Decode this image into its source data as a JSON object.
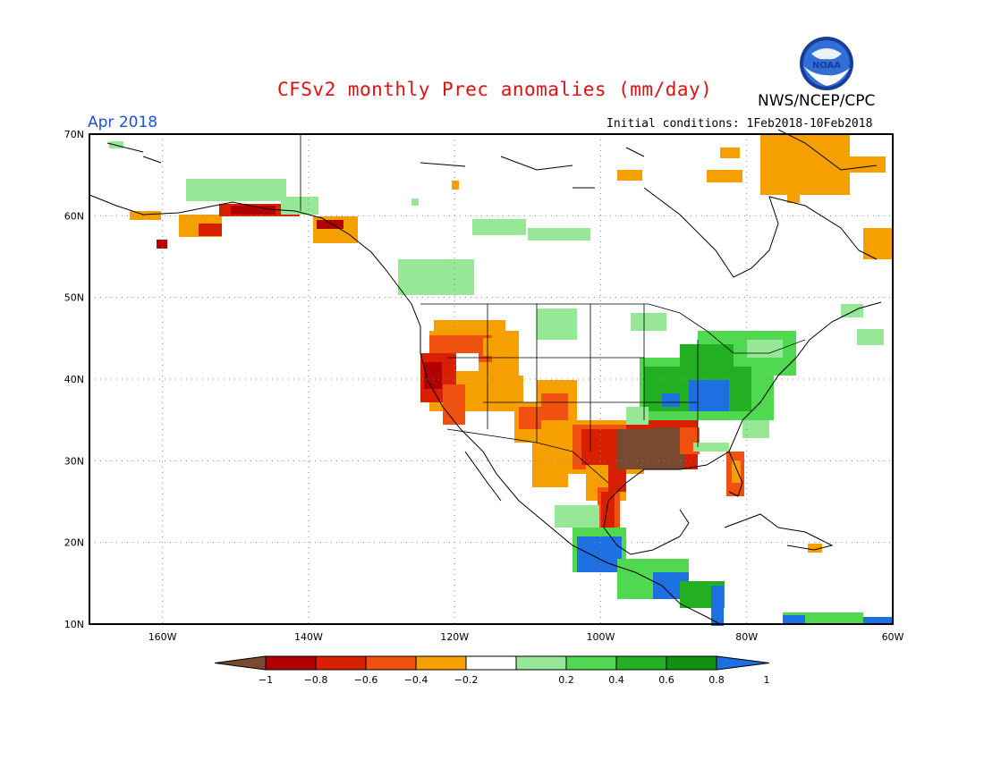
{
  "title": "CFSv2 monthly Prec anomalies (mm/day)",
  "valid_month": "Apr 2018",
  "agency": "NWS/NCEP/CPC",
  "initial_conditions": "Initial conditions: 1Feb2018-10Feb2018",
  "logo": {
    "icon": "noaa-logo-icon",
    "text": "NOAA"
  },
  "map": {
    "lon_range": [
      -170,
      -60
    ],
    "lat_range": [
      10,
      70
    ],
    "lat_labels": [
      "70N",
      "60N",
      "50N",
      "40N",
      "30N",
      "20N",
      "10N"
    ],
    "lon_labels": [
      "160W",
      "140W",
      "120W",
      "100W",
      "80W",
      "60W"
    ],
    "grid_style": "dotted"
  },
  "colorbar": {
    "ticks": [
      "−1",
      "−0.8",
      "−0.6",
      "−0.4",
      "−0.2",
      "0.2",
      "0.4",
      "0.6",
      "0.8",
      "1"
    ],
    "colors": {
      "below_min": "#7a4a30",
      "lt_-0.8": "#b00000",
      "lt_-0.6": "#d82000",
      "lt_-0.4": "#f05010",
      "lt_-0.2": "#f5a000",
      "neutral": "#ffffff",
      "gt_0.2": "#96e896",
      "gt_0.4": "#50d850",
      "gt_0.6": "#22b022",
      "gt_0.8": "#109010",
      "above_max": "#1e6fe0"
    }
  }
}
